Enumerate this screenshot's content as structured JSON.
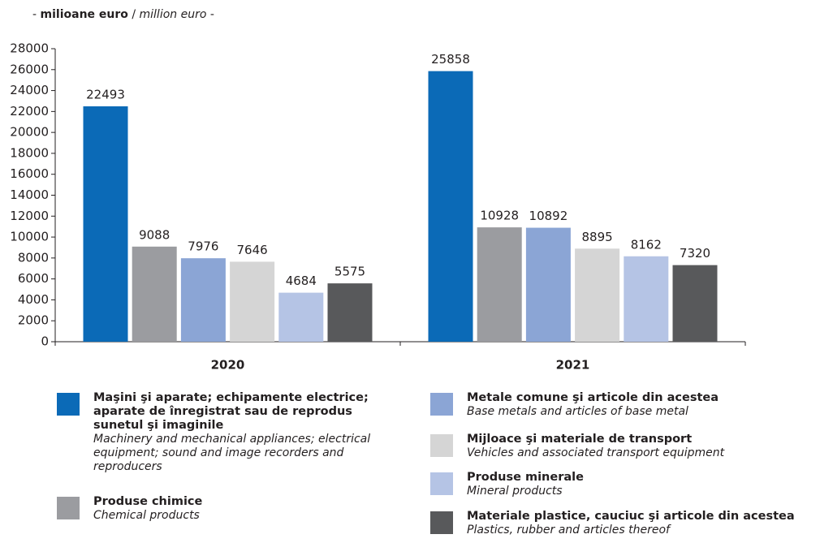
{
  "chart_data": {
    "type": "bar",
    "unit_label": {
      "prefix": "- ",
      "bold": "milioane euro",
      "separator": " / ",
      "italic": "million euro",
      "suffix": " -"
    },
    "categories": [
      "2020",
      "2021"
    ],
    "series": [
      {
        "name": "Maşini şi aparate; echipamente electrice; aparate de înregistrat sau de reprodus sunetul şi imaginile",
        "name_en": "Machinery and mechanical appliances; electrical equipment; sound and image recorders and reproducers",
        "color": "#0b6ab7",
        "values": [
          22493,
          25858
        ]
      },
      {
        "name": "Produse chimice",
        "name_en": "Chemical products",
        "color": "#9b9ca0",
        "values": [
          9088,
          10928
        ]
      },
      {
        "name": "Metale comune şi articole din acestea",
        "name_en": "Base metals and articles of base metal",
        "color": "#8ba5d5",
        "values": [
          7976,
          10892
        ]
      },
      {
        "name": "Mijloace şi materiale de transport",
        "name_en": "Vehicles and associated transport equipment",
        "color": "#d5d5d5",
        "values": [
          7646,
          8895
        ]
      },
      {
        "name": "Produse minerale",
        "name_en": "Mineral products",
        "color": "#b5c4e5",
        "values": [
          4684,
          8162
        ]
      },
      {
        "name": "Materiale plastice, cauciuc şi articole din acestea",
        "name_en": "Plastics, rubber and articles thereof",
        "color": "#58595b",
        "values": [
          5575,
          7320
        ]
      }
    ],
    "ylim": [
      0,
      28000
    ],
    "yticks": [
      0,
      2000,
      4000,
      6000,
      8000,
      10000,
      12000,
      14000,
      16000,
      18000,
      20000,
      22000,
      24000,
      26000,
      28000
    ]
  }
}
